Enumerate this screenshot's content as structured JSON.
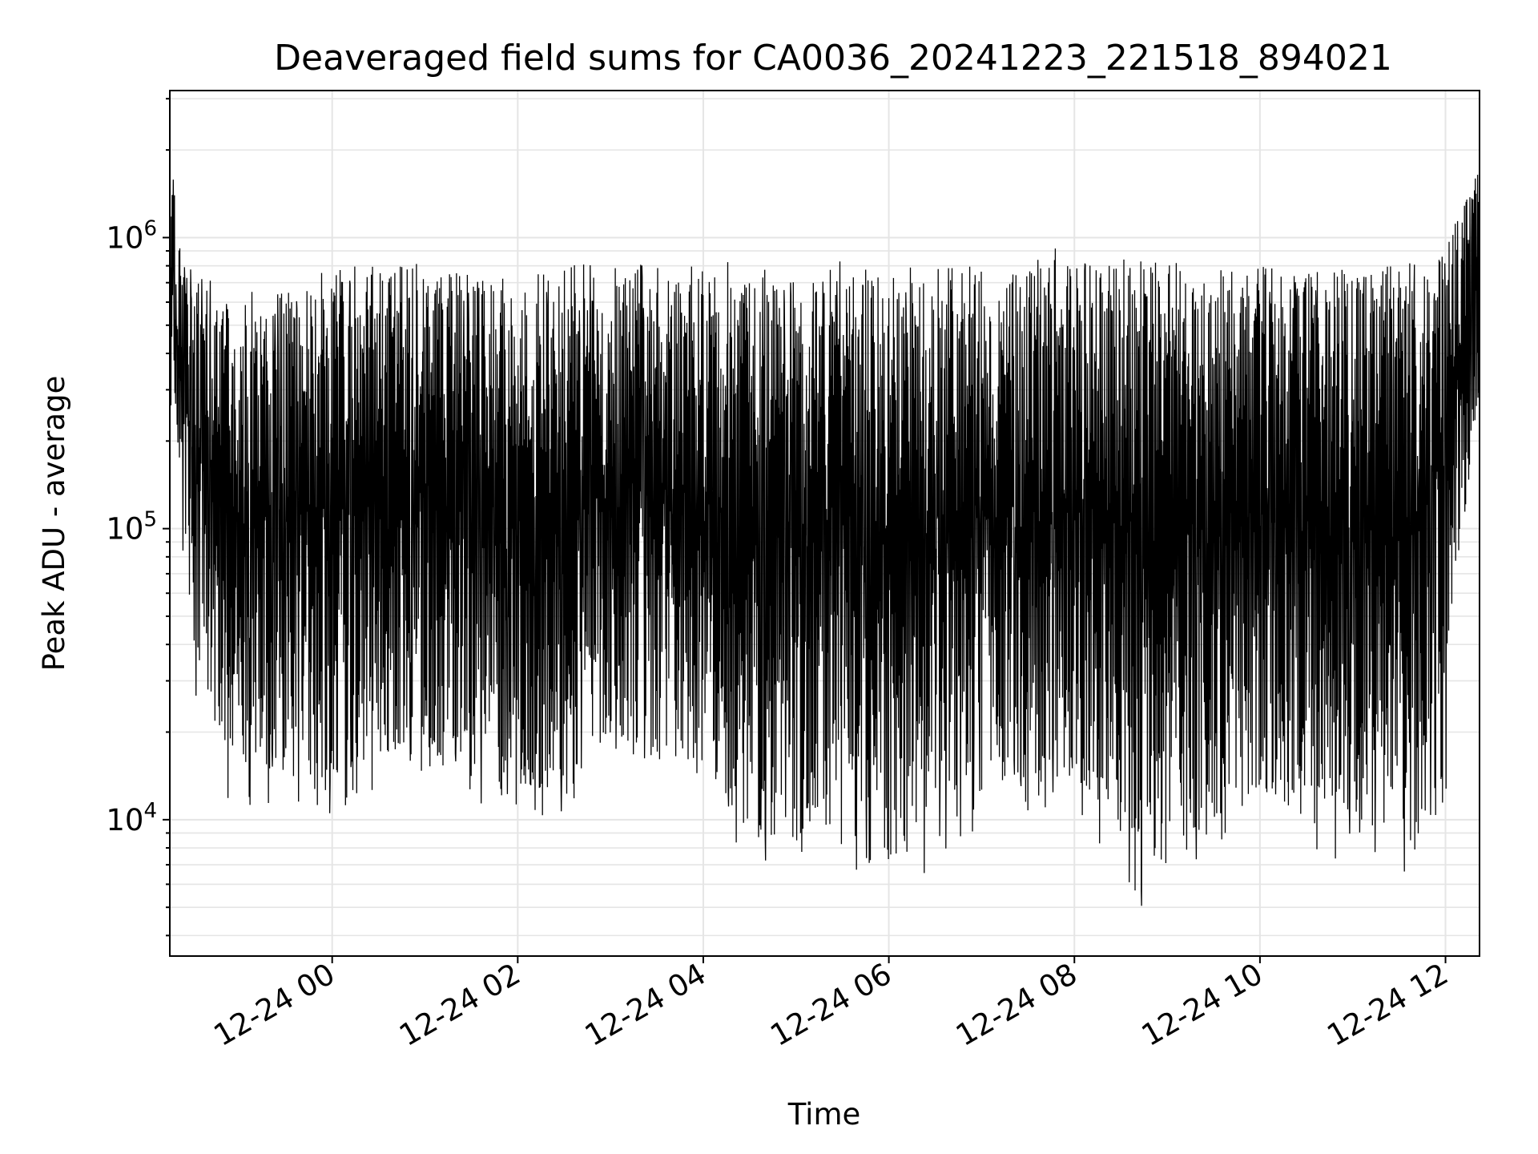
{
  "chart_data": {
    "type": "line",
    "title": "Deaveraged field sums for CA0036_20241223_221518_894021",
    "xlabel": "Time",
    "ylabel": "Peak ADU - average",
    "yscale": "log",
    "grid": true,
    "line_color": "#000000",
    "grid_color": "#e5e5e5",
    "xlim": [
      "2024-12-23 22:15",
      "2024-12-24 12:22"
    ],
    "ylim": [
      3400,
      3200000
    ],
    "x_ticks": [
      {
        "value": "2024-12-24 00:00",
        "label": "12-24 00"
      },
      {
        "value": "2024-12-24 02:00",
        "label": "12-24 02"
      },
      {
        "value": "2024-12-24 04:00",
        "label": "12-24 04"
      },
      {
        "value": "2024-12-24 06:00",
        "label": "12-24 06"
      },
      {
        "value": "2024-12-24 08:00",
        "label": "12-24 08"
      },
      {
        "value": "2024-12-24 10:00",
        "label": "12-24 10"
      },
      {
        "value": "2024-12-24 12:00",
        "label": "12-24 12"
      }
    ],
    "y_ticks": [
      {
        "value": 10000,
        "base": "10",
        "exp": "4"
      },
      {
        "value": 100000,
        "base": "10",
        "exp": "5"
      },
      {
        "value": 1000000,
        "base": "10",
        "exp": "6"
      }
    ],
    "series": [
      {
        "x": [
          "2024-12-23 22:15",
          "2024-12-23 22:20",
          "2024-12-23 22:30",
          "2024-12-23 22:45",
          "2024-12-23 23:00",
          "2024-12-23 23:30",
          "2024-12-24 00:00",
          "2024-12-24 00:30",
          "2024-12-24 01:00",
          "2024-12-24 01:30",
          "2024-12-24 02:00",
          "2024-12-24 02:30",
          "2024-12-24 03:00",
          "2024-12-24 03:30",
          "2024-12-24 04:00",
          "2024-12-24 04:30",
          "2024-12-24 05:00",
          "2024-12-24 05:30",
          "2024-12-24 06:00",
          "2024-12-24 06:30",
          "2024-12-24 07:00",
          "2024-12-24 07:30",
          "2024-12-24 08:00",
          "2024-12-24 08:30",
          "2024-12-24 09:00",
          "2024-12-24 09:30",
          "2024-12-24 10:00",
          "2024-12-24 10:30",
          "2024-12-24 11:00",
          "2024-12-24 11:30",
          "2024-12-24 12:00",
          "2024-12-24 12:22"
        ],
        "low": [
          300000,
          200000,
          40000,
          20000,
          15000,
          14000,
          14000,
          17000,
          17000,
          15000,
          11000,
          14000,
          19000,
          16000,
          16000,
          9000,
          8500,
          14000,
          7000,
          12000,
          13000,
          13000,
          14000,
          9000,
          7000,
          10000,
          13000,
          10500,
          10000,
          9000,
          30000,
          300000
        ],
        "high": [
          2300000,
          1000000,
          750000,
          650000,
          600000,
          650000,
          800000,
          800000,
          800000,
          750000,
          720000,
          800000,
          850000,
          800000,
          800000,
          780000,
          780000,
          800000,
          800000,
          780000,
          800000,
          780000,
          800000,
          850000,
          830000,
          800000,
          800000,
          800000,
          820000,
          800000,
          900000,
          1800000
        ],
        "min": [
          300000,
          120000,
          25000,
          13000,
          9500,
          12000,
          9800,
          13000,
          14000,
          12000,
          8300,
          10000,
          15000,
          14000,
          13000,
          6500,
          7700,
          7500,
          5200,
          6200,
          10000,
          10500,
          11000,
          5100,
          4400,
          7800,
          10000,
          7800,
          7100,
          6000,
          11000,
          300000
        ],
        "max": [
          2400000,
          1050000,
          900000,
          700000,
          650000,
          700000,
          810000,
          820000,
          830000,
          800000,
          800000,
          830000,
          860000,
          830000,
          830000,
          840000,
          790000,
          850000,
          850000,
          800000,
          820000,
          800000,
          1020000,
          860000,
          850000,
          830000,
          830000,
          820000,
          840000,
          820000,
          920000,
          1850000
        ]
      }
    ]
  }
}
